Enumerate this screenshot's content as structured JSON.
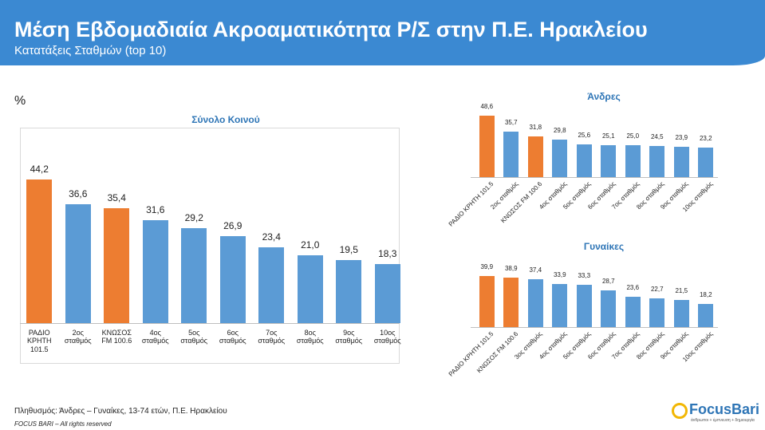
{
  "header": {
    "title": "Μέση Εβδομαδιαία Ακροαματικότητα Ρ/Σ στην Π.Ε. Ηρακλείου",
    "subtitle": "Κατατάξεις Σταθμών (top 10)"
  },
  "unit": "%",
  "chart_data": [
    {
      "type": "bar",
      "title": "Σύνολο Κοινού",
      "categories": [
        "ΡΑΔΙΟ ΚΡΗΤΗ 101.5",
        "2ος σταθμός",
        "ΚΝΩΣΟΣ FM 100.6",
        "4ος σταθμός",
        "5ος σταθμός",
        "6ος σταθμός",
        "7ος σταθμός",
        "8ος σταθμός",
        "9ος σταθμός",
        "10ος σταθμός"
      ],
      "values": [
        44.2,
        36.6,
        35.4,
        31.6,
        29.2,
        26.9,
        23.4,
        21.0,
        19.5,
        18.3
      ],
      "value_labels": [
        "44,2",
        "36,6",
        "35,4",
        "31,6",
        "29,2",
        "26,9",
        "23,4",
        "21,0",
        "19,5",
        "18,3"
      ],
      "colors": [
        "#ED7D31",
        "#5B9BD5",
        "#ED7D31",
        "#5B9BD5",
        "#5B9BD5",
        "#5B9BD5",
        "#5B9BD5",
        "#5B9BD5",
        "#5B9BD5",
        "#5B9BD5"
      ]
    },
    {
      "type": "bar",
      "title": "Άνδρες",
      "categories": [
        "ΡΑΔΙΟ ΚΡΗΤΗ 101.5",
        "2ος σταθμός",
        "ΚΝΩΣΟΣ FM 100.6",
        "4ος σταθμός",
        "5ος σταθμός",
        "6ος σταθμός",
        "7ος σταθμός",
        "8ος σταθμός",
        "9ος σταθμός",
        "10ος σταθμός"
      ],
      "values": [
        48.6,
        35.7,
        31.8,
        29.8,
        25.6,
        25.1,
        25.0,
        24.5,
        23.9,
        23.2
      ],
      "value_labels": [
        "48,6",
        "35,7",
        "31,8",
        "29,8",
        "25,6",
        "25,1",
        "25,0",
        "24,5",
        "23,9",
        "23,2"
      ],
      "colors": [
        "#ED7D31",
        "#5B9BD5",
        "#ED7D31",
        "#5B9BD5",
        "#5B9BD5",
        "#5B9BD5",
        "#5B9BD5",
        "#5B9BD5",
        "#5B9BD5",
        "#5B9BD5"
      ]
    },
    {
      "type": "bar",
      "title": "Γυναίκες",
      "categories": [
        "ΡΑΔΙΟ ΚΡΗΤΗ 101.5",
        "ΚΝΩΣΟΣ FM 100.6",
        "3ος σταθμός",
        "4ος σταθμός",
        "5ος σταθμός",
        "6ος σταθμός",
        "7ος σταθμός",
        "8ος σταθμός",
        "9ος σταθμός",
        "10ος σταθμός"
      ],
      "values": [
        39.9,
        38.9,
        37.4,
        33.9,
        33.3,
        28.7,
        23.6,
        22.7,
        21.5,
        18.2
      ],
      "value_labels": [
        "39,9",
        "38,9",
        "37,4",
        "33,9",
        "33,3",
        "28,7",
        "23,6",
        "22,7",
        "21,5",
        "18,2"
      ],
      "colors": [
        "#ED7D31",
        "#ED7D31",
        "#5B9BD5",
        "#5B9BD5",
        "#5B9BD5",
        "#5B9BD5",
        "#5B9BD5",
        "#5B9BD5",
        "#5B9BD5",
        "#5B9BD5"
      ]
    }
  ],
  "footer": {
    "population": "Πληθυσμός: Άνδρες – Γυναίκες, 13-74 ετών, Π.Ε. Ηρακλείου",
    "rights": "FOCUS BARI – All rights reserved"
  },
  "logo": {
    "name": "FocusBari",
    "tagline": "άνθρωποι + έμπνευση + δημιουργία"
  }
}
